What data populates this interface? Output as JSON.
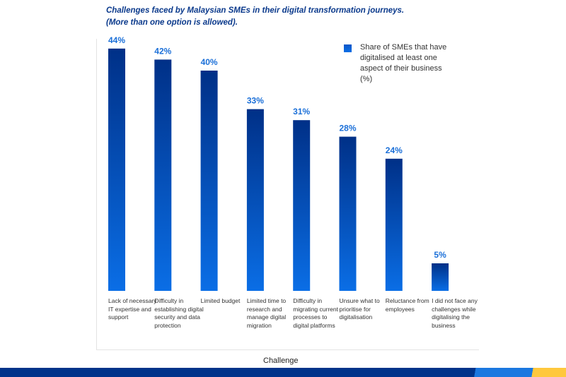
{
  "chart_data": {
    "type": "bar",
    "title": "Challenges faced by Malaysian SMEs in their digital transformation journeys.",
    "subtitle": "(More than one option is allowed).",
    "xlabel": "Challenge",
    "ylabel": "",
    "ylim": [
      0,
      50
    ],
    "grid": false,
    "legend_position": "top-right",
    "legend": [
      "Share of SMEs that have digitalised at least one aspect of their business (%)"
    ],
    "categories": [
      "Lack of necessary IT expertise and support",
      "Difficulty in establishing digital security and data protection",
      "Limited budget",
      "Limited time to research and manage digital migration",
      "Difficulty in migrating current processes to digital platforms",
      "Unsure what to prioritise for digitalisation",
      "Reluctance from employees",
      "I did not face any challenges while digitalising the business"
    ],
    "values": [
      44,
      42,
      40,
      33,
      31,
      28,
      24,
      5
    ],
    "data_labels": [
      "44%",
      "42%",
      "40%",
      "33%",
      "31%",
      "28%",
      "24%",
      "5%"
    ],
    "colors": {
      "bar_top": "#003087",
      "bar_bottom": "#0a6ee6",
      "label": "#1a6fd8"
    }
  }
}
